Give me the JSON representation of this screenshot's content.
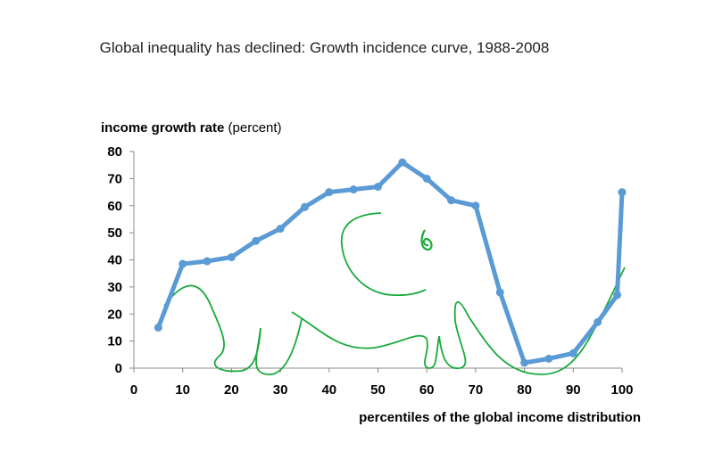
{
  "chart_data": {
    "type": "line",
    "title": "Global inequality has declined: Growth incidence curve, 1988-2008",
    "ylabel_bold": "income growth rate",
    "ylabel_unit": "(percent)",
    "xlabel": "percentiles of the global income distribution",
    "xlim": [
      0,
      100
    ],
    "ylim": [
      0,
      80
    ],
    "xticks": [
      0,
      10,
      20,
      30,
      40,
      50,
      60,
      70,
      80,
      90,
      100
    ],
    "yticks": [
      0,
      10,
      20,
      30,
      40,
      50,
      60,
      70,
      80
    ],
    "grid": false,
    "series": [
      {
        "color": "#5b9bd5",
        "x": [
          5,
          10,
          15,
          20,
          25,
          30,
          35,
          40,
          45,
          50,
          55,
          60,
          65,
          70,
          75,
          80,
          85,
          90,
          95,
          99,
          100
        ],
        "y": [
          15,
          38.5,
          39.5,
          41,
          47,
          51.5,
          59.5,
          65,
          66,
          67,
          76,
          70,
          62,
          60,
          28,
          2,
          3.5,
          5.5,
          17,
          27,
          65
        ]
      }
    ],
    "annotation_color": "#1aaa3c"
  }
}
